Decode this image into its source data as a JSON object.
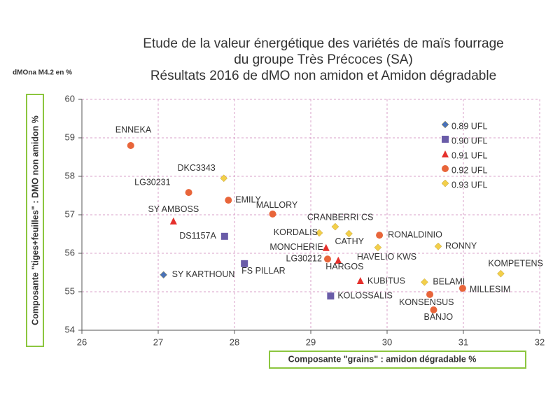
{
  "chart_data": {
    "type": "scatter",
    "title": [
      "Etude de la valeur énergétique des variétés de maïs fourrage",
      "du groupe Très Précoces (SA)",
      "Résultats 2016 de dMO non amidon et Amidon dégradable"
    ],
    "unit_note": "dMOna M4.2 en %",
    "x_label": "Composante \"grains\" : amidon dégradable %",
    "y_label": "Composante \"tiges+feuilles\" : DMO non amidon %",
    "xlim": [
      26,
      32
    ],
    "xticks": [
      26,
      27,
      28,
      29,
      30,
      31,
      32
    ],
    "ylim": [
      54,
      60
    ],
    "yticks": [
      54,
      55,
      56,
      57,
      58,
      59,
      60
    ],
    "grid": true,
    "series": [
      {
        "name": "0.89 UFL",
        "color": "#4a72b8",
        "marker": "diamond",
        "labels": [
          "SY KARTHOUN"
        ],
        "x": [
          27.07
        ],
        "values": [
          55.44
        ]
      },
      {
        "name": "0.90 UFL",
        "color": "#6a5ca8",
        "marker": "square",
        "labels": [
          "DS1157A",
          "FS PILLAR",
          "KOLOSSALIS"
        ],
        "x": [
          27.87,
          28.13,
          29.26
        ],
        "values": [
          56.44,
          55.73,
          54.89
        ]
      },
      {
        "name": "0.91 UFL",
        "color": "#e5302c",
        "marker": "triangle",
        "labels": [
          "SY AMBOSS",
          "MONCHERIE",
          "HARGOS",
          "KUBITUS"
        ],
        "x": [
          27.2,
          29.2,
          29.36,
          29.65
        ],
        "values": [
          56.84,
          56.15,
          55.82,
          55.29
        ]
      },
      {
        "name": "0.92 UFL",
        "color": "#e8653a",
        "marker": "circle",
        "labels": [
          "ENNEKA",
          "LG30231",
          "EMILY",
          "MALLORY",
          "RONALDINIO",
          "LG30212",
          "MILLESIM",
          "KONSENSUS",
          "BANJO"
        ],
        "x": [
          26.64,
          27.4,
          27.92,
          28.5,
          29.9,
          29.22,
          30.99,
          30.56,
          30.61
        ],
        "values": [
          58.8,
          57.58,
          57.38,
          57.02,
          56.47,
          55.85,
          55.09,
          54.93,
          54.53
        ]
      },
      {
        "name": "0.93 UFL",
        "color": "#f3cf4a",
        "marker": "diamond",
        "labels": [
          "DKC3343",
          "KORDALIS",
          "CRANBERRI CS",
          "CATHY",
          "HAVELIO KWS",
          "RONNY",
          "BELAMI",
          "KOMPETENS"
        ],
        "x": [
          27.86,
          29.11,
          29.32,
          29.5,
          29.88,
          30.67,
          30.49,
          31.49
        ],
        "values": [
          57.95,
          56.53,
          56.69,
          56.51,
          56.15,
          56.18,
          55.25,
          55.47
        ]
      }
    ]
  }
}
